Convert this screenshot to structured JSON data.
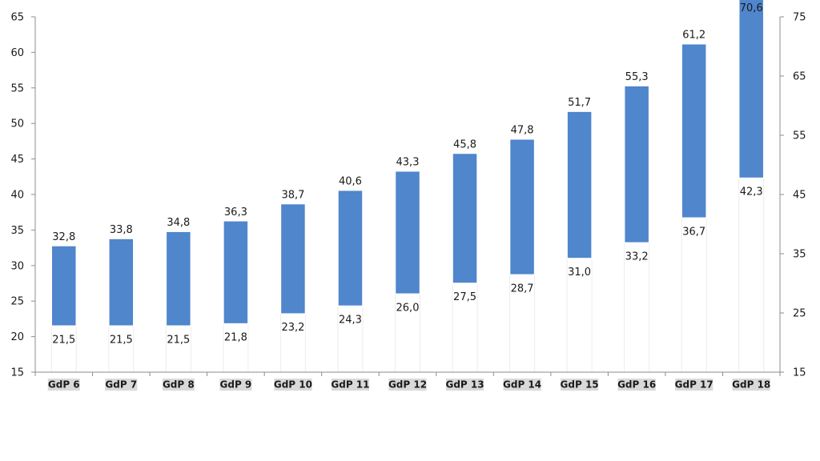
{
  "chart_data": {
    "type": "bar",
    "subtype": "floating-range",
    "categories": [
      "GdP 6",
      "GdP 7",
      "GdP 8",
      "GdP 9",
      "GdP 10",
      "GdP 11",
      "GdP 12",
      "GdP 13",
      "GdP 14",
      "GdP 15",
      "GdP 16",
      "GdP 17",
      "GdP 18"
    ],
    "low": [
      21.5,
      21.5,
      21.5,
      21.8,
      23.2,
      24.3,
      26.0,
      27.5,
      28.7,
      31.0,
      33.2,
      36.7,
      42.3
    ],
    "high": [
      32.8,
      33.8,
      34.8,
      36.3,
      38.7,
      40.6,
      43.3,
      45.8,
      47.8,
      51.7,
      55.3,
      61.2,
      70.6
    ],
    "low_labels": [
      "21,5",
      "21,5",
      "21,5",
      "21,8",
      "23,2",
      "24,3",
      "26,0",
      "27,5",
      "28,7",
      "31,0",
      "33,2",
      "36,7",
      "42,3"
    ],
    "high_labels": [
      "32,8",
      "33,8",
      "34,8",
      "36,3",
      "38,7",
      "40,6",
      "43,3",
      "45,8",
      "47,8",
      "51,7",
      "55,3",
      "61,2",
      "70,6"
    ],
    "left_axis": {
      "ylim": [
        15,
        65
      ],
      "ticks": [
        "15",
        "20",
        "25",
        "30",
        "35",
        "40",
        "45",
        "50",
        "55",
        "60",
        "65"
      ]
    },
    "right_axis": {
      "ylim": [
        15,
        75
      ],
      "ticks": [
        "15",
        "25",
        "35",
        "45",
        "55",
        "65",
        "75"
      ]
    },
    "bar_color": "#4F86CC",
    "title": "",
    "xlabel": "",
    "ylabel": "",
    "grid": false
  }
}
